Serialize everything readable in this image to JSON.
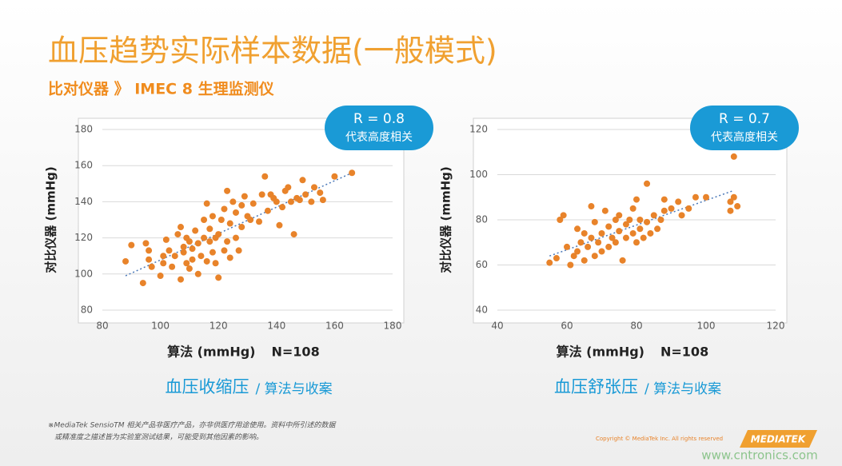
{
  "title": "血压趋势实际样本数据(一般模式)",
  "subtitle": "比对仪器 》 IMEC 8 生理监测仪",
  "footnote": [
    "※MediaTek SensioTM 相关产品非医疗产品，亦非供医疗用途使用。资料中所引述的数据",
    "或精准度之描述皆为实验室测试结果，可能受到其他因素的影响。"
  ],
  "copyright": "Copyright © MediaTek Inc. All rights reserved",
  "logo": "MEDIATEK",
  "watermark": "www.cntronics.com",
  "chart_data": [
    {
      "type": "scatter",
      "xlabel": "算法 (mmHg)",
      "note": "N=108",
      "ylabel": "对比仪器 (mmHg)",
      "color": "#e8832a",
      "grid": true,
      "annotation": {
        "text": "R = 0.8",
        "subtext": "代表高度相关"
      },
      "caption": "血压收缩压",
      "caption_sub": "/ 算法与收案",
      "xlim": [
        80,
        180
      ],
      "xticks": [
        80,
        100,
        120,
        140,
        160,
        180
      ],
      "ylim": [
        80,
        180
      ],
      "yticks": [
        80,
        100,
        120,
        140,
        160,
        180
      ],
      "trend": {
        "x": [
          88,
          166
        ],
        "values": [
          99,
          156
        ]
      },
      "x": [
        88,
        90,
        94,
        95,
        96,
        96,
        97,
        100,
        101,
        101,
        102,
        103,
        104,
        105,
        106,
        107,
        107,
        108,
        108,
        109,
        109,
        110,
        110,
        111,
        111,
        112,
        113,
        113,
        114,
        115,
        115,
        116,
        116,
        117,
        117,
        118,
        118,
        119,
        119,
        120,
        120,
        121,
        122,
        122,
        123,
        123,
        124,
        124,
        125,
        126,
        126,
        127,
        128,
        128,
        129,
        130,
        131,
        132,
        134,
        135,
        136,
        137,
        138,
        139,
        140,
        141,
        142,
        143,
        144,
        145,
        146,
        147,
        148,
        149,
        150,
        152,
        153,
        155,
        156,
        160,
        166
      ],
      "values": [
        107,
        116,
        95,
        117,
        113,
        108,
        104,
        99,
        110,
        106,
        119,
        113,
        104,
        110,
        122,
        126,
        97,
        115,
        112,
        106,
        120,
        118,
        103,
        114,
        108,
        124,
        117,
        100,
        110,
        130,
        120,
        139,
        107,
        125,
        118,
        132,
        112,
        120,
        106,
        122,
        98,
        130,
        113,
        136,
        146,
        118,
        128,
        109,
        140,
        134,
        120,
        113,
        138,
        126,
        143,
        132,
        130,
        139,
        129,
        144,
        154,
        135,
        144,
        142,
        140,
        127,
        137,
        146,
        148,
        140,
        122,
        142,
        141,
        152,
        144,
        140,
        148,
        145,
        141,
        154,
        156
      ]
    },
    {
      "type": "scatter",
      "xlabel": "算法 (mmHg)",
      "note": "N=108",
      "ylabel": "对比仪器 (mmHg)",
      "color": "#e8832a",
      "grid": true,
      "annotation": {
        "text": "R = 0.7",
        "subtext": "代表高度相关"
      },
      "caption": "血压舒张压",
      "caption_sub": "/ 算法与收案",
      "xlim": [
        40,
        120
      ],
      "xticks": [
        40,
        60,
        80,
        100,
        120
      ],
      "ylim": [
        40,
        120
      ],
      "yticks": [
        40,
        60,
        80,
        100,
        120
      ],
      "trend": {
        "x": [
          55,
          108
        ],
        "values": [
          64,
          93
        ]
      },
      "x": [
        55,
        57,
        58,
        59,
        60,
        61,
        62,
        63,
        63,
        64,
        65,
        65,
        66,
        67,
        67,
        68,
        68,
        69,
        70,
        70,
        71,
        72,
        72,
        73,
        74,
        74,
        75,
        75,
        76,
        77,
        77,
        78,
        79,
        79,
        80,
        80,
        81,
        81,
        82,
        83,
        83,
        84,
        85,
        86,
        87,
        88,
        88,
        90,
        92,
        93,
        95,
        97,
        100,
        107,
        107,
        108,
        108,
        109
      ],
      "values": [
        61,
        63,
        80,
        82,
        68,
        60,
        64,
        66,
        76,
        70,
        74,
        62,
        68,
        86,
        72,
        64,
        79,
        70,
        74,
        66,
        84,
        77,
        68,
        72,
        80,
        70,
        82,
        75,
        62,
        78,
        72,
        80,
        85,
        74,
        89,
        70,
        80,
        76,
        72,
        96,
        79,
        74,
        82,
        76,
        80,
        89,
        84,
        85,
        88,
        82,
        85,
        90,
        90,
        84,
        88,
        108,
        90,
        86
      ]
    }
  ]
}
